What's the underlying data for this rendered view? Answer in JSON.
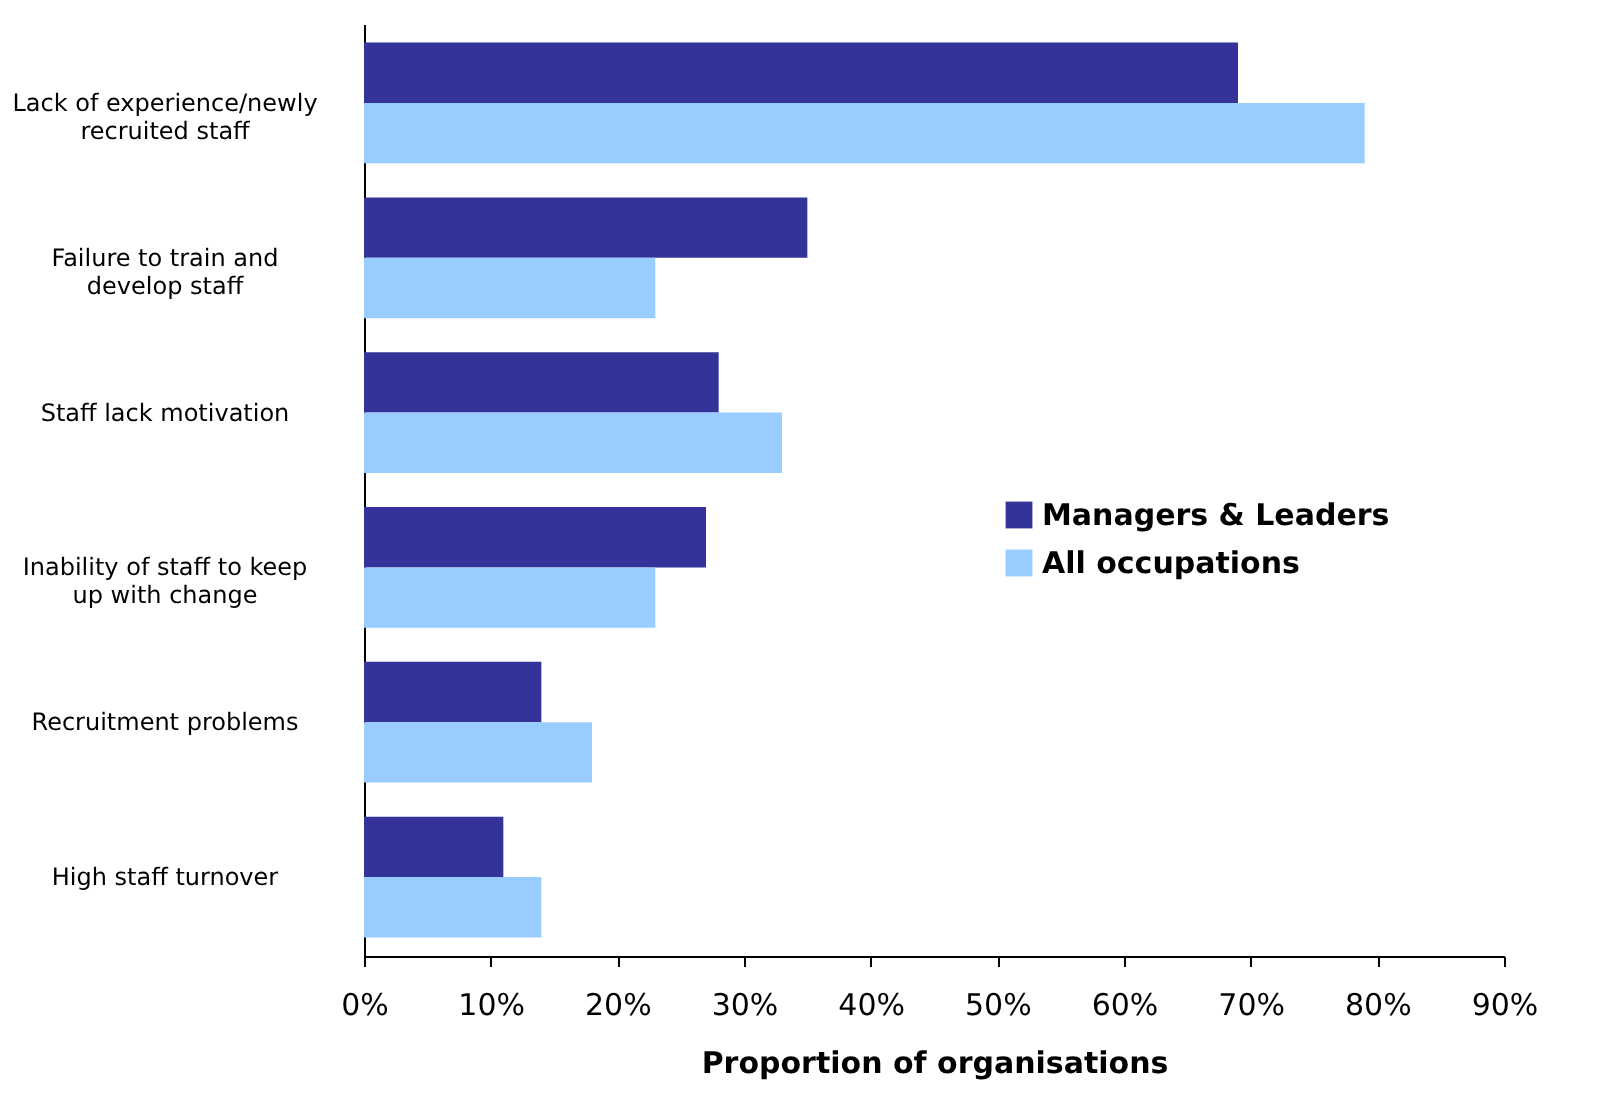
{
  "chart_data": {
    "type": "bar",
    "orientation": "horizontal",
    "xlabel": "Proportion of organisations",
    "categories": [
      "Lack of experience/newly recruited staff",
      "Failure to train and develop staff",
      "Staff lack motivation",
      "Inability of staff to keep up with change",
      "Recruitment problems",
      "High staff turnover"
    ],
    "series": [
      {
        "name": "Managers & Leaders",
        "color": "#333399",
        "values": [
          69,
          35,
          28,
          27,
          14,
          11
        ]
      },
      {
        "name": "All occupations",
        "color": "#99ccff",
        "values": [
          79,
          23,
          33,
          23,
          18,
          14
        ]
      }
    ],
    "xlim": [
      0,
      90
    ],
    "xticks": [
      {
        "value": 0,
        "label": "0%"
      },
      {
        "value": 10,
        "label": "10%"
      },
      {
        "value": 20,
        "label": "20%"
      },
      {
        "value": 30,
        "label": "30%"
      },
      {
        "value": 40,
        "label": "40%"
      },
      {
        "value": 50,
        "label": "50%"
      },
      {
        "value": 60,
        "label": "60%"
      },
      {
        "value": 70,
        "label": "70%"
      },
      {
        "value": 80,
        "label": "80%"
      },
      {
        "value": 90,
        "label": "90%"
      }
    ],
    "grid": false,
    "legend": "right"
  }
}
